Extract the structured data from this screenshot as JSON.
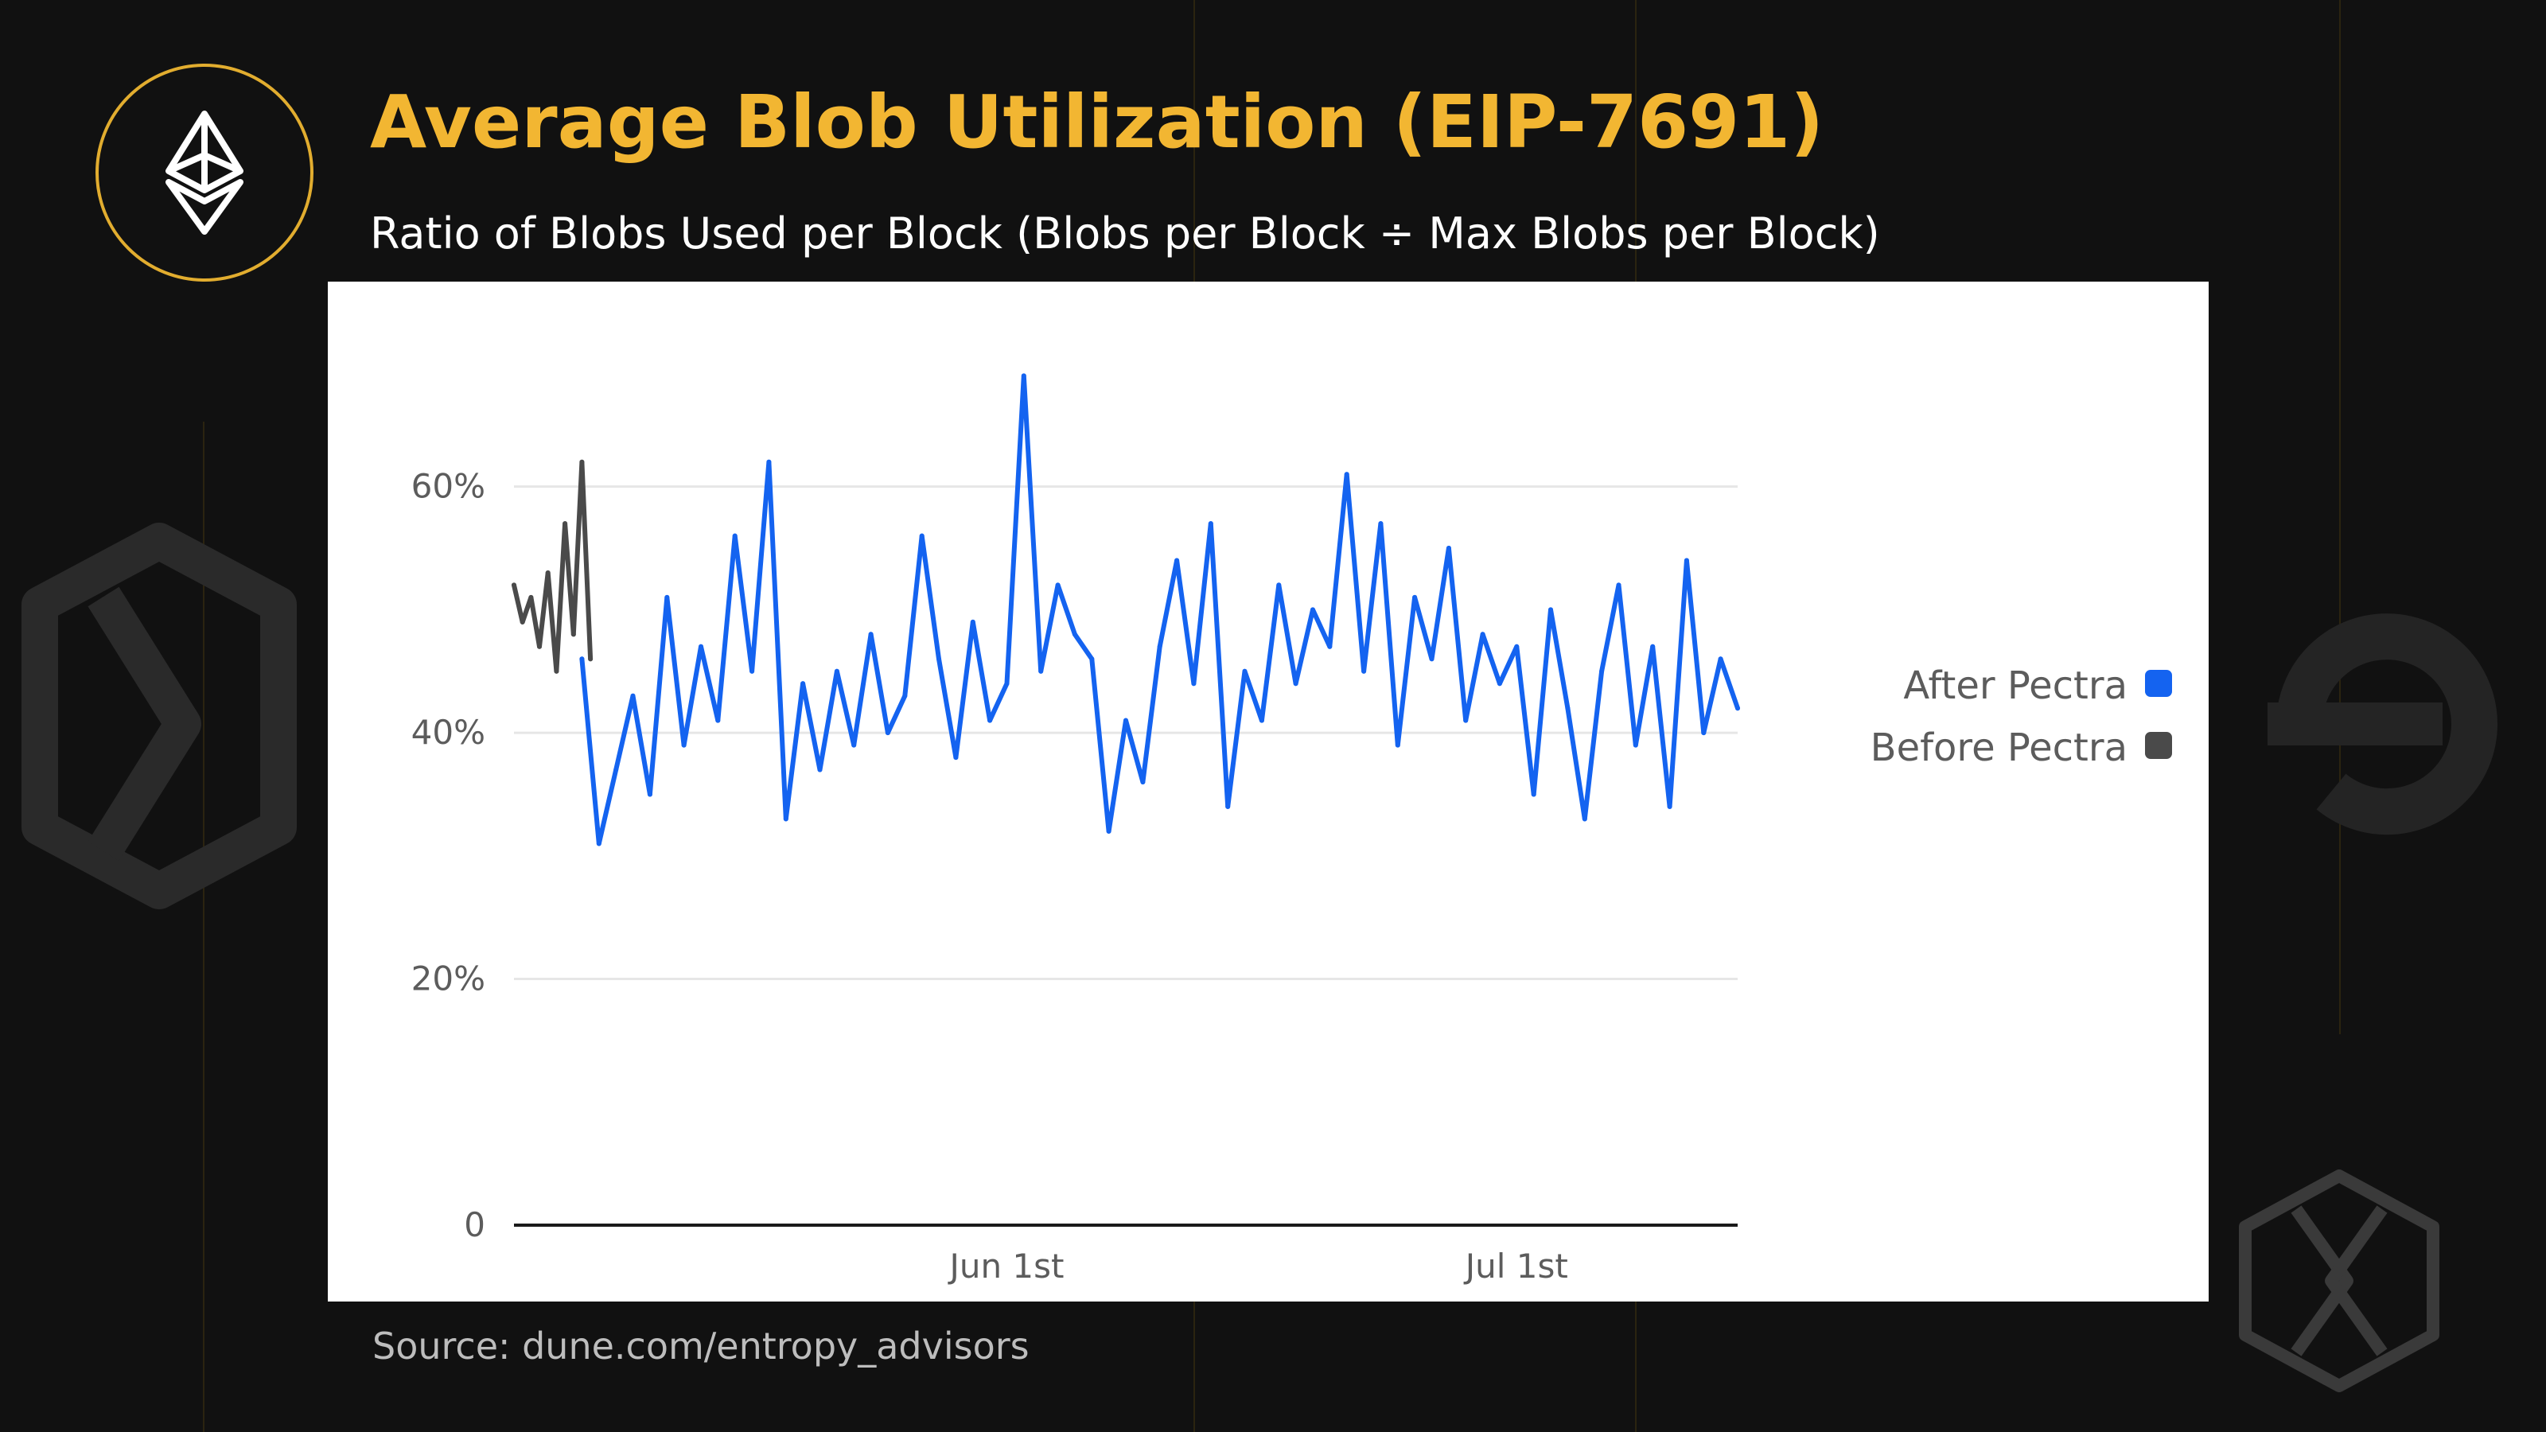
{
  "header": {
    "title": "Average Blob Utilization (EIP-7691)",
    "subtitle": "Ratio of Blobs Used per Block (Blobs per Block ÷ Max Blobs per Block)",
    "icon": "ethereum-icon"
  },
  "footer": {
    "source": "Source: dune.com/entropy_advisors"
  },
  "colors": {
    "accent": "#f2b632",
    "after": "#1463f0",
    "before": "#4a4a4a",
    "background": "#111111"
  },
  "chart_data": {
    "type": "line",
    "title": "Average Blob Utilization (EIP-7691)",
    "subtitle": "Ratio of Blobs Used per Block (Blobs per Block ÷ Max Blobs per Block)",
    "xlabel": "",
    "ylabel": "",
    "x_range": [
      "2025-05-03",
      "2025-07-14"
    ],
    "x_ticks": [
      {
        "label": "Jun 1st",
        "date": "2025-06-01"
      },
      {
        "label": "Jul 1st",
        "date": "2025-07-01"
      }
    ],
    "ylim": [
      0,
      0.72
    ],
    "y_ticks": [
      {
        "label": "0",
        "value": 0
      },
      {
        "label": "20%",
        "value": 0.2
      },
      {
        "label": "40%",
        "value": 0.4
      },
      {
        "label": "60%",
        "value": 0.6
      }
    ],
    "grid": true,
    "legend": "right",
    "series": [
      {
        "name": "Before Pectra",
        "color": "#4a4a4a",
        "points": [
          [
            "2025-05-03",
            0.52
          ],
          [
            "2025-05-03T12",
            0.49
          ],
          [
            "2025-05-04",
            0.51
          ],
          [
            "2025-05-04T12",
            0.47
          ],
          [
            "2025-05-05",
            0.53
          ],
          [
            "2025-05-05T12",
            0.45
          ],
          [
            "2025-05-06",
            0.57
          ],
          [
            "2025-05-06T12",
            0.48
          ],
          [
            "2025-05-07",
            0.62
          ],
          [
            "2025-05-07T12",
            0.46
          ]
        ]
      },
      {
        "name": "After Pectra",
        "color": "#1463f0",
        "points": [
          [
            "2025-05-07",
            0.46
          ],
          [
            "2025-05-08",
            0.31
          ],
          [
            "2025-05-09",
            0.37
          ],
          [
            "2025-05-10",
            0.43
          ],
          [
            "2025-05-11",
            0.35
          ],
          [
            "2025-05-12",
            0.51
          ],
          [
            "2025-05-13",
            0.39
          ],
          [
            "2025-05-14",
            0.47
          ],
          [
            "2025-05-15",
            0.41
          ],
          [
            "2025-05-16",
            0.56
          ],
          [
            "2025-05-17",
            0.45
          ],
          [
            "2025-05-18",
            0.62
          ],
          [
            "2025-05-19",
            0.33
          ],
          [
            "2025-05-20",
            0.44
          ],
          [
            "2025-05-21",
            0.37
          ],
          [
            "2025-05-22",
            0.45
          ],
          [
            "2025-05-23",
            0.39
          ],
          [
            "2025-05-24",
            0.48
          ],
          [
            "2025-05-25",
            0.4
          ],
          [
            "2025-05-26",
            0.43
          ],
          [
            "2025-05-27",
            0.56
          ],
          [
            "2025-05-28",
            0.46
          ],
          [
            "2025-05-29",
            0.38
          ],
          [
            "2025-05-30",
            0.49
          ],
          [
            "2025-05-31",
            0.41
          ],
          [
            "2025-06-01",
            0.44
          ],
          [
            "2025-06-02",
            0.69
          ],
          [
            "2025-06-03",
            0.45
          ],
          [
            "2025-06-04",
            0.52
          ],
          [
            "2025-06-05",
            0.48
          ],
          [
            "2025-06-06",
            0.46
          ],
          [
            "2025-06-07",
            0.32
          ],
          [
            "2025-06-08",
            0.41
          ],
          [
            "2025-06-09",
            0.36
          ],
          [
            "2025-06-10",
            0.47
          ],
          [
            "2025-06-11",
            0.54
          ],
          [
            "2025-06-12",
            0.44
          ],
          [
            "2025-06-13",
            0.57
          ],
          [
            "2025-06-14",
            0.34
          ],
          [
            "2025-06-15",
            0.45
          ],
          [
            "2025-06-16",
            0.41
          ],
          [
            "2025-06-17",
            0.52
          ],
          [
            "2025-06-18",
            0.44
          ],
          [
            "2025-06-19",
            0.5
          ],
          [
            "2025-06-20",
            0.47
          ],
          [
            "2025-06-21",
            0.61
          ],
          [
            "2025-06-22",
            0.45
          ],
          [
            "2025-06-23",
            0.57
          ],
          [
            "2025-06-24",
            0.39
          ],
          [
            "2025-06-25",
            0.51
          ],
          [
            "2025-06-26",
            0.46
          ],
          [
            "2025-06-27",
            0.55
          ],
          [
            "2025-06-28",
            0.41
          ],
          [
            "2025-06-29",
            0.48
          ],
          [
            "2025-06-30",
            0.44
          ],
          [
            "2025-07-01",
            0.47
          ],
          [
            "2025-07-02",
            0.35
          ],
          [
            "2025-07-03",
            0.5
          ],
          [
            "2025-07-04",
            0.42
          ],
          [
            "2025-07-05",
            0.33
          ],
          [
            "2025-07-06",
            0.45
          ],
          [
            "2025-07-07",
            0.52
          ],
          [
            "2025-07-08",
            0.39
          ],
          [
            "2025-07-09",
            0.47
          ],
          [
            "2025-07-10",
            0.34
          ],
          [
            "2025-07-11",
            0.54
          ],
          [
            "2025-07-12",
            0.4
          ],
          [
            "2025-07-13",
            0.46
          ],
          [
            "2025-07-14",
            0.42
          ]
        ]
      }
    ]
  }
}
